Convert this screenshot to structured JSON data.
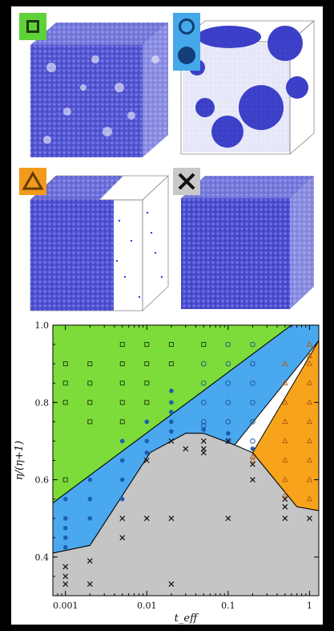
{
  "legend": {
    "square": {
      "color": "#5fd23a",
      "icon": "square-marker-icon"
    },
    "circles": {
      "color": "#45a8ea",
      "icon": "open-and-filled-circle-icon"
    },
    "triangle": {
      "color": "#f19b1c",
      "icon": "triangle-marker-icon"
    },
    "cross": {
      "color": "#c9c9c9",
      "icon": "cross-marker-icon"
    }
  },
  "chart_data": {
    "type": "scatter",
    "xlabel": "t_eff",
    "ylabel": "η/(η+1)",
    "xscale": "log",
    "xlim": [
      0.0007,
      1.3
    ],
    "ylim": [
      0.3,
      1.0
    ],
    "x_ticks": [
      "0.001",
      "0.01",
      "0.1",
      "1"
    ],
    "y_ticks": [
      "0.4",
      "0.6",
      "0.8",
      "1.0"
    ],
    "regions": [
      {
        "color": "#7ddc3a",
        "polygon": [
          [
            0.0007,
            0.54
          ],
          [
            0.0007,
            1.0
          ],
          [
            0.6,
            1.0
          ]
        ]
      },
      {
        "color": "#4aa8ee",
        "polygon": [
          [
            0.0007,
            0.41
          ],
          [
            0.0007,
            0.54
          ],
          [
            0.6,
            1.0
          ],
          [
            1.3,
            1.0
          ],
          [
            1.3,
            0.96
          ],
          [
            0.12,
            0.69
          ],
          [
            0.05,
            0.72
          ],
          [
            0.03,
            0.72
          ],
          [
            0.011,
            0.67
          ],
          [
            0.002,
            0.43
          ]
        ]
      },
      {
        "color": "#f7a31c",
        "polygon": [
          [
            0.2,
            0.67
          ],
          [
            1.3,
            0.96
          ],
          [
            1.3,
            0.52
          ],
          [
            0.7,
            0.53
          ]
        ]
      },
      {
        "color": "#c5c5c5",
        "polygon": [
          [
            0.0007,
            0.3
          ],
          [
            0.0007,
            0.41
          ],
          [
            0.002,
            0.43
          ],
          [
            0.011,
            0.67
          ],
          [
            0.03,
            0.72
          ],
          [
            0.05,
            0.72
          ],
          [
            0.12,
            0.69
          ],
          [
            0.2,
            0.67
          ],
          [
            0.7,
            0.53
          ],
          [
            1.3,
            0.52
          ],
          [
            1.3,
            0.3
          ]
        ]
      }
    ],
    "series": [
      {
        "marker": "square",
        "points": [
          [
            0.001,
            0.9
          ],
          [
            0.001,
            0.85
          ],
          [
            0.001,
            0.8
          ],
          [
            0.001,
            0.6
          ],
          [
            0.002,
            0.9
          ],
          [
            0.002,
            0.85
          ],
          [
            0.002,
            0.8
          ],
          [
            0.002,
            0.75
          ],
          [
            0.005,
            0.95
          ],
          [
            0.005,
            0.9
          ],
          [
            0.005,
            0.85
          ],
          [
            0.005,
            0.8
          ],
          [
            0.005,
            0.75
          ],
          [
            0.01,
            0.95
          ],
          [
            0.01,
            0.9
          ],
          [
            0.01,
            0.85
          ],
          [
            0.01,
            0.8
          ],
          [
            0.02,
            0.95
          ],
          [
            0.02,
            0.9
          ],
          [
            0.05,
            0.95
          ]
        ]
      },
      {
        "marker": "open-circle",
        "points": [
          [
            0.05,
            0.9
          ],
          [
            0.05,
            0.85
          ],
          [
            0.05,
            0.8
          ],
          [
            0.05,
            0.75
          ],
          [
            0.05,
            0.74
          ],
          [
            0.1,
            0.95
          ],
          [
            0.1,
            0.9
          ],
          [
            0.1,
            0.85
          ],
          [
            0.1,
            0.8
          ],
          [
            0.1,
            0.75
          ],
          [
            0.1,
            0.7
          ],
          [
            0.2,
            0.95
          ],
          [
            0.2,
            0.9
          ],
          [
            0.2,
            0.85
          ],
          [
            0.2,
            0.8
          ],
          [
            0.2,
            0.75
          ],
          [
            0.2,
            0.7
          ]
        ]
      },
      {
        "marker": "filled-circle",
        "points": [
          [
            0.001,
            0.55
          ],
          [
            0.001,
            0.5
          ],
          [
            0.001,
            0.475
          ],
          [
            0.001,
            0.45
          ],
          [
            0.001,
            0.425
          ],
          [
            0.002,
            0.6
          ],
          [
            0.002,
            0.55
          ],
          [
            0.002,
            0.5
          ],
          [
            0.005,
            0.7
          ],
          [
            0.005,
            0.65
          ],
          [
            0.005,
            0.6
          ],
          [
            0.005,
            0.55
          ],
          [
            0.01,
            0.75
          ],
          [
            0.01,
            0.7
          ],
          [
            0.01,
            0.67
          ],
          [
            0.02,
            0.83
          ],
          [
            0.02,
            0.8
          ],
          [
            0.02,
            0.775
          ],
          [
            0.02,
            0.75
          ],
          [
            0.02,
            0.725
          ],
          [
            0.05,
            0.73
          ],
          [
            0.1,
            0.72
          ],
          [
            0.2,
            0.68
          ]
        ]
      },
      {
        "marker": "triangle",
        "points": [
          [
            0.5,
            0.9
          ],
          [
            0.5,
            0.85
          ],
          [
            0.5,
            0.8
          ],
          [
            0.5,
            0.75
          ],
          [
            0.5,
            0.7
          ],
          [
            0.5,
            0.65
          ],
          [
            0.5,
            0.6
          ],
          [
            0.5,
            0.56
          ],
          [
            1,
            0.95
          ],
          [
            1,
            0.92
          ],
          [
            1,
            0.9
          ],
          [
            1,
            0.85
          ],
          [
            1,
            0.8
          ],
          [
            1,
            0.75
          ],
          [
            1,
            0.7
          ],
          [
            1,
            0.65
          ],
          [
            1,
            0.6
          ],
          [
            1,
            0.55
          ],
          [
            0.2,
            0.66
          ],
          [
            0.2,
            0.65
          ]
        ]
      },
      {
        "marker": "cross",
        "points": [
          [
            0.001,
            0.375
          ],
          [
            0.001,
            0.35
          ],
          [
            0.001,
            0.33
          ],
          [
            0.002,
            0.39
          ],
          [
            0.002,
            0.33
          ],
          [
            0.005,
            0.5
          ],
          [
            0.005,
            0.45
          ],
          [
            0.01,
            0.65
          ],
          [
            0.01,
            0.5
          ],
          [
            0.02,
            0.5
          ],
          [
            0.02,
            0.33
          ],
          [
            0.02,
            0.7
          ],
          [
            0.03,
            0.68
          ],
          [
            0.05,
            0.7
          ],
          [
            0.05,
            0.67
          ],
          [
            0.05,
            0.68
          ],
          [
            0.1,
            0.7
          ],
          [
            0.1,
            0.5
          ],
          [
            0.2,
            0.6
          ],
          [
            0.2,
            0.64
          ],
          [
            0.5,
            0.55
          ],
          [
            0.5,
            0.53
          ],
          [
            0.5,
            0.5
          ],
          [
            1,
            0.5
          ]
        ]
      }
    ]
  }
}
